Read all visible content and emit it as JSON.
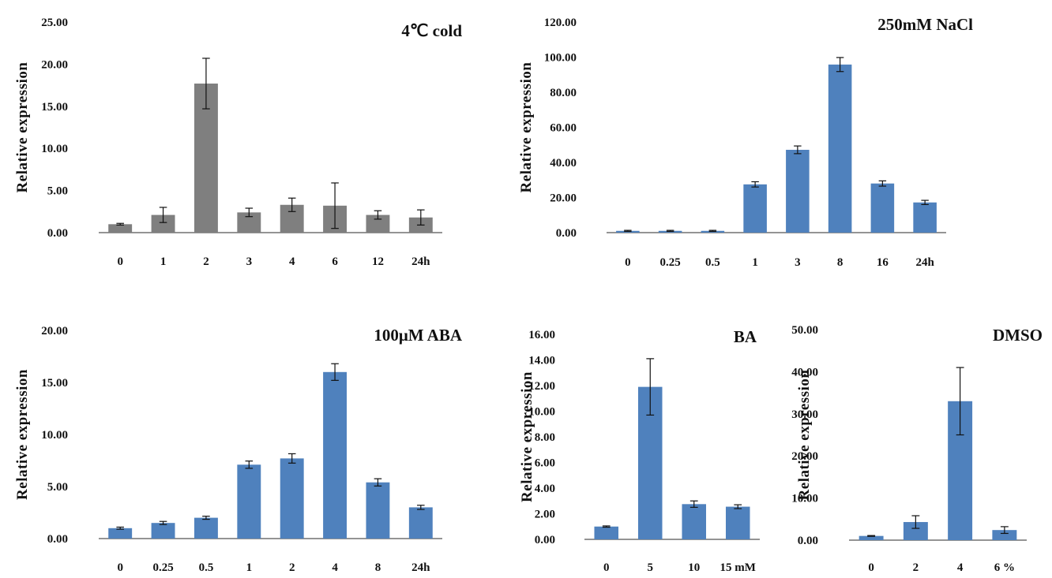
{
  "chart_data": [
    {
      "type": "bar",
      "title": "4℃ cold",
      "ylabel": "Relative expression",
      "xlabel": "",
      "ylim": [
        0,
        25
      ],
      "yticks": [
        "0.00",
        "5.00",
        "10.00",
        "15.00",
        "20.00",
        "25.00"
      ],
      "categories": [
        "0",
        "1",
        "2",
        "3",
        "4",
        "6",
        "12",
        "24h"
      ],
      "values": [
        1.0,
        2.1,
        17.7,
        2.4,
        3.3,
        3.2,
        2.1,
        1.8
      ],
      "errors": [
        0.1,
        0.9,
        3.0,
        0.5,
        0.8,
        2.7,
        0.5,
        0.9
      ],
      "color": "#7f7f7f"
    },
    {
      "type": "bar",
      "title": "250mM NaCl",
      "ylabel": "Relative expression",
      "xlabel": "",
      "ylim": [
        0,
        120
      ],
      "yticks": [
        "0.00",
        "20.00",
        "40.00",
        "60.00",
        "80.00",
        "100.00",
        "120.00"
      ],
      "categories": [
        "0",
        "0.25",
        "0.5",
        "1",
        "3",
        "8",
        "16",
        "24h"
      ],
      "values": [
        1.0,
        1.0,
        1.0,
        27.5,
        47.2,
        95.8,
        28.0,
        17.2
      ],
      "errors": [
        0.3,
        0.3,
        0.3,
        1.5,
        2.2,
        4.0,
        1.5,
        1.2
      ],
      "color": "#4f81bd"
    },
    {
      "type": "bar",
      "title": "100μM ABA",
      "ylabel": "Relative expression",
      "xlabel": "",
      "ylim": [
        0,
        20
      ],
      "yticks": [
        "0.00",
        "5.00",
        "10.00",
        "15.00",
        "20.00"
      ],
      "categories": [
        "0",
        "0.25",
        "0.5",
        "1",
        "2",
        "4",
        "8",
        "24h"
      ],
      "values": [
        1.0,
        1.5,
        2.0,
        7.1,
        7.7,
        16.0,
        5.4,
        3.0
      ],
      "errors": [
        0.1,
        0.15,
        0.15,
        0.35,
        0.45,
        0.8,
        0.35,
        0.2
      ],
      "color": "#4f81bd"
    },
    {
      "type": "bar",
      "title": "BA",
      "ylabel": "Relative expression",
      "xlabel": "",
      "ylim": [
        0,
        16
      ],
      "yticks": [
        "0.00",
        "2.00",
        "4.00",
        "6.00",
        "8.00",
        "10.00",
        "12.00",
        "14.00",
        "16.00"
      ],
      "categories": [
        "0",
        "5",
        "10",
        "15 mM"
      ],
      "values": [
        1.0,
        11.9,
        2.75,
        2.55
      ],
      "errors": [
        0.05,
        2.2,
        0.25,
        0.15
      ],
      "color": "#4f81bd"
    },
    {
      "type": "bar",
      "title": "DMSO",
      "ylabel": "Relative expression",
      "xlabel": "",
      "ylim": [
        0,
        50
      ],
      "yticks": [
        "0.00",
        "10.00",
        "20.00",
        "30.00",
        "40.00",
        "50.00"
      ],
      "categories": [
        "0",
        "2",
        "4",
        "6 %"
      ],
      "values": [
        1.0,
        4.3,
        33.0,
        2.4
      ],
      "errors": [
        0.1,
        1.5,
        8.0,
        0.8
      ],
      "color": "#4f81bd"
    }
  ]
}
